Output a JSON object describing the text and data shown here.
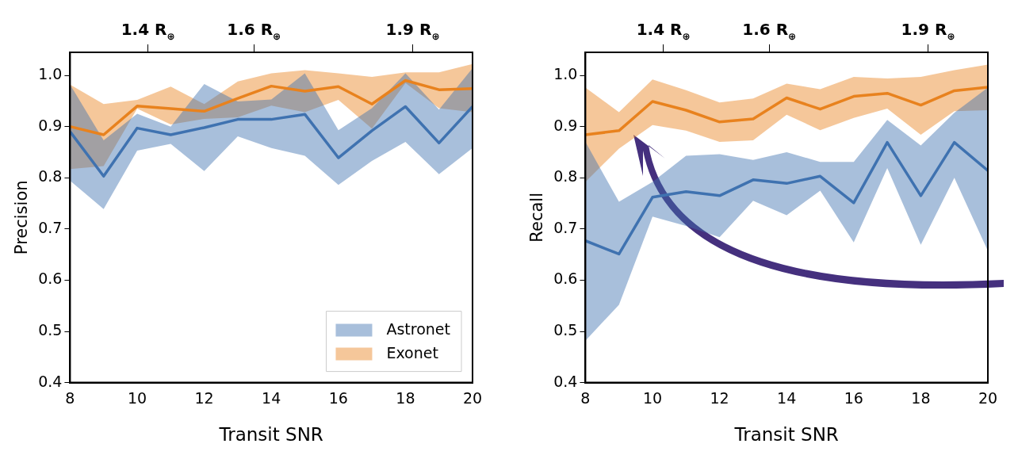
{
  "chart_data": [
    {
      "type": "line",
      "xlabel": "Transit SNR",
      "ylabel": "Precision",
      "marker": "none",
      "legend": "bottom right",
      "x": [
        8,
        9,
        10,
        11,
        12,
        13,
        14,
        15,
        16,
        17,
        18,
        19,
        20
      ],
      "xlim": [
        8,
        20
      ],
      "xticks": [
        8,
        10,
        12,
        14,
        16,
        18,
        20
      ],
      "ylim": [
        0.4,
        1.045
      ],
      "yticks": [
        0.4,
        0.5,
        0.6,
        0.7,
        0.8,
        0.9,
        {
          "value": 1,
          "label": "1.0"
        }
      ],
      "x2lim": [
        1.253,
        2.013
      ],
      "x2ticks": [
        {
          "value": 1.4,
          "label": "1.4 R$_{⊕}$"
        },
        {
          "value": 1.6,
          "label": "1.6 R$_{⊕}$"
        },
        {
          "value": 1.9,
          "label": "1.9 R$_{⊕}$"
        }
      ],
      "series": [
        {
          "name": "Astronet",
          "color": "#3f72b0",
          "values": [
            0.89,
            0.803,
            0.897,
            0.884,
            0.898,
            0.914,
            0.914,
            0.924,
            0.839,
            0.892,
            0.939,
            0.868,
            0.939
          ],
          "lower": [
            0.794,
            0.739,
            0.853,
            0.866,
            0.813,
            0.881,
            0.858,
            0.843,
            0.786,
            0.833,
            0.87,
            0.807,
            0.858
          ],
          "upper": [
            0.982,
            0.873,
            0.925,
            0.9,
            0.983,
            0.949,
            0.953,
            1.004,
            0.893,
            0.936,
            1.004,
            0.933,
            1.014
          ]
        },
        {
          "name": "Exonet",
          "color": "#e8821e",
          "values": [
            0.9,
            0.884,
            0.94,
            0.935,
            0.93,
            0.955,
            0.979,
            0.969,
            0.978,
            0.944,
            0.99,
            0.972,
            0.974
          ],
          "lower": [
            0.817,
            0.823,
            0.935,
            0.904,
            0.915,
            0.918,
            0.941,
            0.928,
            0.952,
            0.896,
            0.985,
            0.936,
            0.928
          ],
          "upper": [
            0.982,
            0.944,
            0.952,
            0.978,
            0.944,
            0.988,
            1.004,
            1.01,
            1.004,
            0.997,
            1.006,
            1.006,
            1.022
          ]
        }
      ]
    },
    {
      "type": "line",
      "xlabel": "Transit SNR",
      "ylabel": "Recall",
      "marker": "none",
      "x": [
        8,
        9,
        10,
        11,
        12,
        13,
        14,
        15,
        16,
        17,
        18,
        19,
        20
      ],
      "xlim": [
        8,
        20
      ],
      "xticks": [
        8,
        10,
        12,
        14,
        16,
        18,
        20
      ],
      "ylim": [
        0.4,
        1.045
      ],
      "yticks": [
        0.4,
        0.5,
        0.6,
        0.7,
        0.8,
        0.9,
        {
          "value": 1,
          "label": "1.0"
        }
      ],
      "x2lim": [
        1.253,
        2.013
      ],
      "x2ticks": [
        {
          "value": 1.4,
          "label": "1.4 R$_{⊕}$"
        },
        {
          "value": 1.6,
          "label": "1.6 R$_{⊕}$"
        },
        {
          "value": 1.9,
          "label": "1.9 R$_{⊕}$"
        }
      ],
      "series": [
        {
          "color": "#3f72b0",
          "values": [
            0.677,
            0.651,
            0.762,
            0.773,
            0.765,
            0.796,
            0.789,
            0.803,
            0.751,
            0.869,
            0.765,
            0.869,
            0.814
          ],
          "lower": [
            0.482,
            0.552,
            0.724,
            0.706,
            0.684,
            0.755,
            0.727,
            0.775,
            0.674,
            0.819,
            0.669,
            0.8,
            0.657
          ],
          "upper": [
            0.87,
            0.753,
            0.792,
            0.843,
            0.846,
            0.835,
            0.85,
            0.831,
            0.831,
            0.913,
            0.863,
            0.927,
            0.976
          ]
        },
        {
          "color": "#e8821e",
          "values": [
            0.884,
            0.892,
            0.949,
            0.932,
            0.909,
            0.915,
            0.956,
            0.934,
            0.959,
            0.965,
            0.942,
            0.97,
            0.977
          ],
          "lower": [
            0.792,
            0.857,
            0.903,
            0.892,
            0.87,
            0.873,
            0.923,
            0.893,
            0.917,
            0.935,
            0.884,
            0.93,
            0.932
          ],
          "upper": [
            0.976,
            0.928,
            0.992,
            0.971,
            0.947,
            0.955,
            0.984,
            0.973,
            0.997,
            0.994,
            0.997,
            1.01,
            1.021
          ]
        }
      ]
    }
  ]
}
